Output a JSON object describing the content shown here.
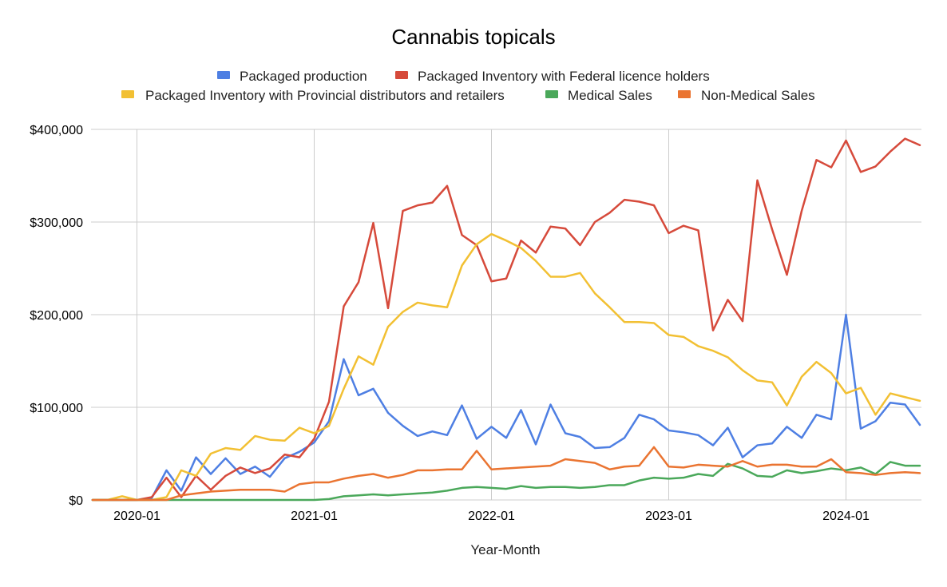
{
  "chart_data": {
    "type": "line",
    "title": "Cannabis topicals",
    "xlabel": "Year-Month",
    "ylabel": "",
    "ylim": [
      0,
      400000
    ],
    "yticks": [
      0,
      100000,
      200000,
      300000,
      400000
    ],
    "ytick_labels": [
      "$0",
      "$100,000",
      "$200,000",
      "$300,000",
      "$400,000"
    ],
    "xticks": [
      "2020-01",
      "2021-01",
      "2022-01",
      "2023-01",
      "2024-01"
    ],
    "grid": true,
    "legend_position": "top",
    "x": [
      "2019-10",
      "2019-11",
      "2019-12",
      "2020-01",
      "2020-02",
      "2020-03",
      "2020-04",
      "2020-05",
      "2020-06",
      "2020-07",
      "2020-08",
      "2020-09",
      "2020-10",
      "2020-11",
      "2020-12",
      "2021-01",
      "2021-02",
      "2021-03",
      "2021-04",
      "2021-05",
      "2021-06",
      "2021-07",
      "2021-08",
      "2021-09",
      "2021-10",
      "2021-11",
      "2021-12",
      "2022-01",
      "2022-02",
      "2022-03",
      "2022-04",
      "2022-05",
      "2022-06",
      "2022-07",
      "2022-08",
      "2022-09",
      "2022-10",
      "2022-11",
      "2022-12",
      "2023-01",
      "2023-02",
      "2023-03",
      "2023-04",
      "2023-05",
      "2023-06",
      "2023-07",
      "2023-08",
      "2023-09",
      "2023-10",
      "2023-11",
      "2023-12",
      "2024-01",
      "2024-02",
      "2024-03",
      "2024-04",
      "2024-05",
      "2024-06"
    ],
    "series": [
      {
        "name": "Packaged production",
        "color": "#4e7fe3",
        "values": [
          0,
          0,
          0,
          0,
          2000,
          32000,
          10000,
          46000,
          28000,
          45000,
          28000,
          36000,
          25000,
          45000,
          52000,
          62000,
          85000,
          152000,
          113000,
          120000,
          94000,
          80000,
          69000,
          74000,
          70000,
          102000,
          66000,
          79000,
          67000,
          97000,
          60000,
          103000,
          72000,
          68000,
          56000,
          57000,
          67000,
          92000,
          87000,
          75000,
          73000,
          70000,
          59000,
          78000,
          46000,
          59000,
          61000,
          79000,
          67000,
          92000,
          87000,
          200000,
          77000,
          85000,
          105000,
          103000,
          81000
        ]
      },
      {
        "name": "Packaged Inventory with Federal licence holders",
        "color": "#d64a3b",
        "values": [
          0,
          0,
          0,
          0,
          3000,
          24000,
          3000,
          26000,
          11000,
          26000,
          35000,
          29000,
          34000,
          49000,
          46000,
          66000,
          106000,
          209000,
          235000,
          299000,
          207000,
          312000,
          318000,
          321000,
          339000,
          286000,
          275000,
          236000,
          239000,
          280000,
          267000,
          295000,
          293000,
          275000,
          300000,
          310000,
          324000,
          322000,
          318000,
          288000,
          296000,
          291000,
          183000,
          216000,
          193000,
          345000,
          292000,
          243000,
          312000,
          367000,
          359000,
          388000,
          354000,
          360000,
          376000,
          390000,
          383000
        ]
      },
      {
        "name": "Packaged Inventory with Provincial distributors and retailers",
        "color": "#f2c033",
        "values": [
          0,
          0,
          4000,
          0,
          0,
          3000,
          32000,
          26000,
          50000,
          56000,
          54000,
          69000,
          65000,
          64000,
          78000,
          72000,
          80000,
          120000,
          155000,
          146000,
          187000,
          203000,
          213000,
          210000,
          208000,
          253000,
          276000,
          287000,
          280000,
          272000,
          258000,
          241000,
          241000,
          245000,
          223000,
          208000,
          192000,
          192000,
          191000,
          178000,
          176000,
          166000,
          161000,
          154000,
          140000,
          129000,
          127000,
          102000,
          133000,
          149000,
          137000,
          115000,
          121000,
          92000,
          115000,
          111000,
          107000
        ]
      },
      {
        "name": "Medical Sales",
        "color": "#4aa85a",
        "values": [
          0,
          0,
          0,
          0,
          0,
          0,
          0,
          0,
          0,
          0,
          0,
          0,
          0,
          0,
          0,
          0,
          1000,
          4000,
          5000,
          6000,
          5000,
          6000,
          7000,
          8000,
          10000,
          13000,
          14000,
          13000,
          12000,
          15000,
          13000,
          14000,
          14000,
          13000,
          14000,
          16000,
          16000,
          21000,
          24000,
          23000,
          24000,
          28000,
          26000,
          39000,
          34000,
          26000,
          25000,
          32000,
          29000,
          31000,
          34000,
          32000,
          35000,
          28000,
          41000,
          37000,
          37000
        ]
      },
      {
        "name": "Non-Medical Sales",
        "color": "#ea7431",
        "values": [
          0,
          0,
          0,
          0,
          0,
          0,
          5000,
          7000,
          9000,
          10000,
          11000,
          11000,
          11000,
          9000,
          17000,
          19000,
          19000,
          23000,
          26000,
          28000,
          24000,
          27000,
          32000,
          32000,
          33000,
          33000,
          53000,
          33000,
          34000,
          35000,
          36000,
          37000,
          44000,
          42000,
          40000,
          33000,
          36000,
          37000,
          57000,
          36000,
          35000,
          38000,
          37000,
          36000,
          42000,
          36000,
          38000,
          38000,
          36000,
          36000,
          44000,
          30000,
          29000,
          27000,
          29000,
          30000,
          29000
        ]
      }
    ]
  }
}
